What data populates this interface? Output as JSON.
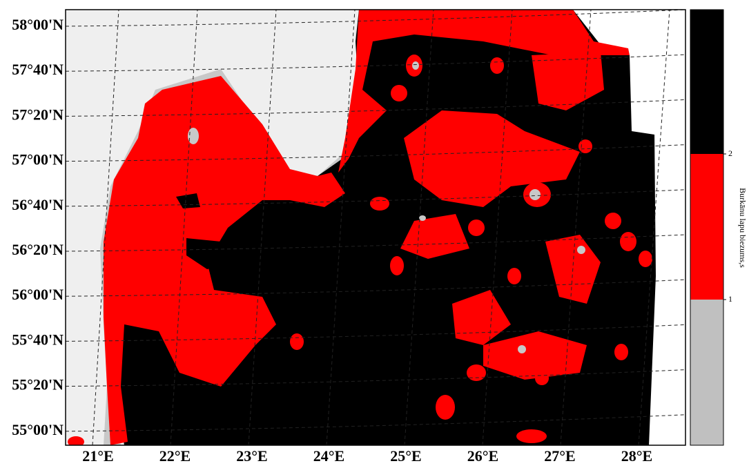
{
  "map": {
    "lat_labels": [
      "58°00'N",
      "57°40'N",
      "57°20'N",
      "57°00'N",
      "56°40'N",
      "56°20'N",
      "56°00'N",
      "55°40'N",
      "55°20'N",
      "55°00'N"
    ],
    "lon_labels": [
      "21°E",
      "22°E",
      "23°E",
      "24°E",
      "25°E",
      "26°E",
      "27°E",
      "28°E"
    ],
    "legend": {
      "title": "Burkānu lapu biezums,s",
      "ticks": [
        1,
        2
      ],
      "colors": [
        "#c0c0c0",
        "#ff0000",
        "#000000"
      ]
    }
  }
}
